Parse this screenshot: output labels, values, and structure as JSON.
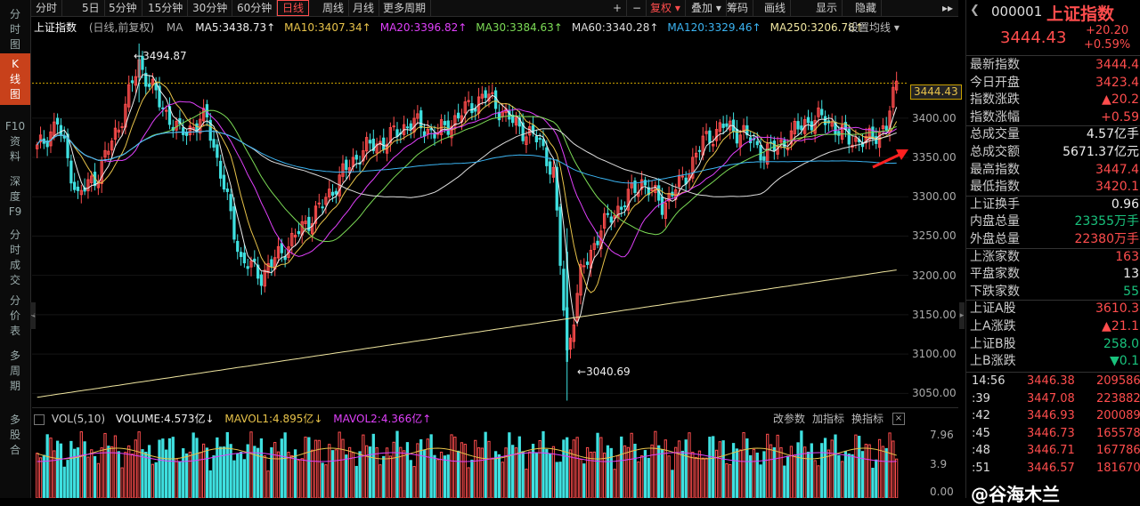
{
  "toolbar": {
    "items": [
      "分时",
      "5日",
      "5分钟",
      "15分钟",
      "30分钟",
      "60分钟",
      "日线",
      "周线",
      "月线",
      "更多周期"
    ],
    "active": "日线",
    "right_items": [
      "+",
      "−",
      "复权",
      "叠加",
      "筹码",
      "画线",
      "显示",
      "隐藏"
    ],
    "fuquan_arrow": "▾",
    "more_arrow": "▸▸"
  },
  "left_tabs": [
    "分\n时\n图",
    "K\n线\n图",
    "F10\n资\n料",
    "深\n度\nF9",
    "分\n时\n成\n交",
    "分\n价\n表",
    "多\n周\n期",
    "多\n股\n合"
  ],
  "chart_header": {
    "name": "上证指数",
    "mode": "(日线,前复权)",
    "ma_label": "MA",
    "ma_items": [
      {
        "text": "MA5:3438.73↑",
        "color": "#eeeeee"
      },
      {
        "text": "MA10:3407.34↑",
        "color": "#e8c34a"
      },
      {
        "text": "MA20:3396.82↑",
        "color": "#e040fb"
      },
      {
        "text": "MA30:3384.63↑",
        "color": "#7cdc56"
      },
      {
        "text": "MA60:3340.28↑",
        "color": "#dddddd"
      },
      {
        "text": "MA120:3329.46↑",
        "color": "#3bb4f2"
      },
      {
        "text": "MA250:3206.78↑",
        "color": "#f0e6a0"
      }
    ],
    "settings": "设置均线 ▾"
  },
  "vol_header": {
    "label": "VOL(5,10)",
    "volume": "VOLUME:4.573亿↓",
    "mavol1": "MAVOL1:4.895亿↓",
    "mavol2": "MAVOL2:4.366亿↑",
    "actions": [
      "改参数",
      "加指标",
      "换指标"
    ]
  },
  "annotations": {
    "high": "3494.87",
    "low": "3040.69",
    "last_price_tag": "3444.43"
  },
  "y_axis_labels": [
    "3400.00",
    "3350.00",
    "3300.00",
    "3250.00",
    "3200.00",
    "3150.00",
    "3100.00",
    "3050.00"
  ],
  "vol_axis_labels": [
    "7.96",
    "3.9",
    "0.00"
  ],
  "chart_data": {
    "type": "candlestick",
    "title": "上证指数",
    "ylim": [
      3030,
      3505
    ],
    "highlight_levels": {
      "high": 3494.87,
      "low": 3040.69,
      "last": 3444.43
    }
  },
  "quote": {
    "code": "000001",
    "name": "上证指数",
    "price": "3444.43",
    "change": "+20.20",
    "change_pct": "+0.59%",
    "rows": [
      {
        "k": "最新指数",
        "v": "3444.4",
        "c": "red"
      },
      {
        "k": "今日开盘",
        "v": "3423.4",
        "c": "red"
      },
      {
        "k": "指数涨跌",
        "v": "▲20.2",
        "c": "red"
      },
      {
        "k": "指数涨幅",
        "v": "+0.59",
        "c": "red"
      },
      {
        "k": "总成交量",
        "v": "4.57亿手",
        "c": "white"
      },
      {
        "k": "总成交额",
        "v": "5671.37亿元",
        "c": "white"
      },
      {
        "k": "最高指数",
        "v": "3447.4",
        "c": "red"
      },
      {
        "k": "最低指数",
        "v": "3420.1",
        "c": "red"
      },
      {
        "k": "上证换手",
        "v": "0.96",
        "c": "white"
      },
      {
        "k": "内盘总量",
        "v": "23355万手",
        "c": "green"
      },
      {
        "k": "外盘总量",
        "v": "22380万手",
        "c": "red"
      },
      {
        "k": "上涨家数",
        "v": "163",
        "c": "red"
      },
      {
        "k": "平盘家数",
        "v": "13",
        "c": "white"
      },
      {
        "k": "下跌家数",
        "v": "55",
        "c": "green"
      },
      {
        "k": "上证A股",
        "v": "3610.3",
        "c": "red"
      },
      {
        "k": "上A涨跌",
        "v": "▲21.1",
        "c": "red"
      },
      {
        "k": "上证B股",
        "v": "258.0",
        "c": "green"
      },
      {
        "k": "上B涨跌",
        "v": "▼0.1",
        "c": "green"
      }
    ],
    "ticks": [
      {
        "t": "14:56",
        "p": "3446.38",
        "v": "209586"
      },
      {
        "t": ":39",
        "p": "3447.08",
        "v": "223882"
      },
      {
        "t": ":42",
        "p": "3446.93",
        "v": "200089"
      },
      {
        "t": ":45",
        "p": "3446.73",
        "v": "165578"
      },
      {
        "t": ":48",
        "p": "3446.71",
        "v": "167786"
      },
      {
        "t": ":51",
        "p": "3446.57",
        "v": "181670"
      }
    ]
  },
  "watermark": "@谷海木兰",
  "colors": {
    "up": "#ff4d4d",
    "down": "#3fe0e0",
    "bg": "#000000",
    "accent": "#c8411b"
  }
}
